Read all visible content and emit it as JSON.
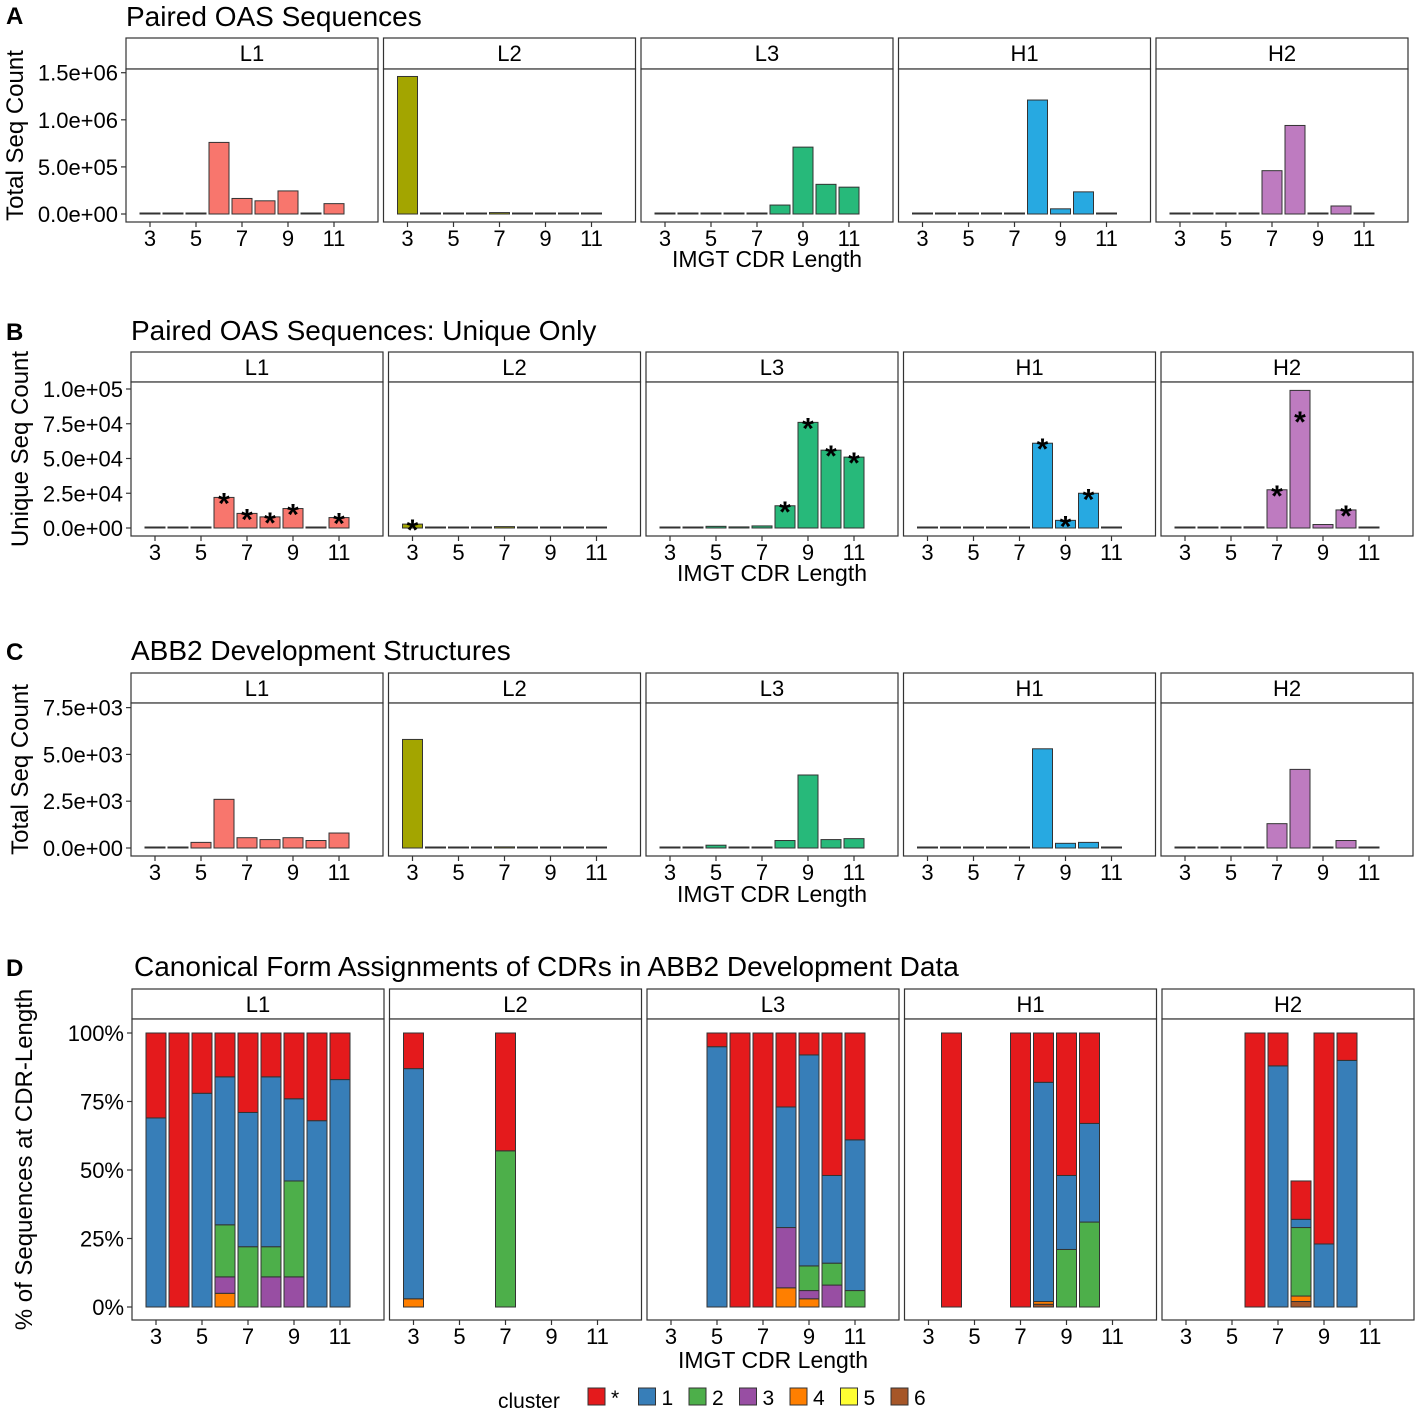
{
  "legend": {
    "title": "cluster",
    "items": [
      {
        "label": "*",
        "color": "#E41A1C"
      },
      {
        "label": "1",
        "color": "#377EB8"
      },
      {
        "label": "2",
        "color": "#4DAF4A"
      },
      {
        "label": "3",
        "color": "#984EA3"
      },
      {
        "label": "4",
        "color": "#FF7F00"
      },
      {
        "label": "5",
        "color": "#FFFF33"
      },
      {
        "label": "6",
        "color": "#A65628"
      }
    ]
  },
  "cdr_colors": {
    "L1": "#F8766D",
    "L2": "#A3A500",
    "L3": "#27B97A",
    "H1": "#27A9E1",
    "H2": "#BE7BC0"
  },
  "chart_data": [
    {
      "letter": "A",
      "type": "bar",
      "title": "Paired OAS Sequences",
      "xlabel": "IMGT CDR Length",
      "ylabel": "Total Seq Count",
      "x": [
        3,
        4,
        5,
        6,
        7,
        8,
        9,
        10,
        11
      ],
      "x_tick_labels": [
        "3",
        "5",
        "7",
        "9",
        "11"
      ],
      "ylim": [
        0,
        1550000
      ],
      "y_ticks": [
        {
          "value": 0,
          "label": "0.0e+00"
        },
        {
          "value": 500000,
          "label": "5.0e+05"
        },
        {
          "value": 1000000,
          "label": "1.0e+06"
        },
        {
          "value": 1500000,
          "label": "1.5e+06"
        }
      ],
      "facets": [
        {
          "label": "L1",
          "values": [
            500,
            500,
            1000,
            760000,
            165000,
            140000,
            245000,
            1000,
            110000
          ]
        },
        {
          "label": "L2",
          "values": [
            1460000,
            1000,
            1000,
            1000,
            15000,
            1000,
            1000,
            1000,
            1000
          ]
        },
        {
          "label": "L3",
          "values": [
            500,
            500,
            1000,
            2000,
            6000,
            95000,
            710000,
            315000,
            285000
          ]
        },
        {
          "label": "H1",
          "values": [
            500,
            500,
            500,
            1000,
            1000,
            1210000,
            55000,
            235000,
            1000
          ]
        },
        {
          "label": "H2",
          "values": [
            500,
            500,
            500,
            1000,
            460000,
            940000,
            5000,
            85000,
            1000
          ]
        }
      ]
    },
    {
      "letter": "B",
      "type": "bar",
      "title": "Paired OAS Sequences: Unique Only",
      "xlabel": "IMGT CDR Length",
      "ylabel": "Unique Seq Count",
      "x": [
        3,
        4,
        5,
        6,
        7,
        8,
        9,
        10,
        11
      ],
      "x_tick_labels": [
        "3",
        "5",
        "7",
        "9",
        "11"
      ],
      "ylim": [
        0,
        100000
      ],
      "y_ticks": [
        {
          "value": 0,
          "label": "0.0e+00"
        },
        {
          "value": 25000,
          "label": "2.5e+04"
        },
        {
          "value": 50000,
          "label": "5.0e+04"
        },
        {
          "value": 75000,
          "label": "7.5e+04"
        },
        {
          "value": 100000,
          "label": "1.0e+05"
        }
      ],
      "annotation_symbol": "*",
      "facets": [
        {
          "label": "L1",
          "values": [
            100,
            100,
            200,
            22000,
            10500,
            8000,
            14000,
            300,
            7500
          ],
          "starred": [
            6,
            7,
            8,
            9,
            11
          ]
        },
        {
          "label": "L2",
          "values": [
            2800,
            100,
            100,
            100,
            1000,
            100,
            100,
            100,
            100
          ],
          "starred": [
            3
          ]
        },
        {
          "label": "L3",
          "values": [
            100,
            200,
            1200,
            800,
            1500,
            16000,
            76000,
            56000,
            51000
          ],
          "starred": [
            8,
            9,
            10,
            11
          ]
        },
        {
          "label": "H1",
          "values": [
            100,
            100,
            100,
            300,
            300,
            61000,
            5500,
            25000,
            300
          ],
          "starred": [
            8,
            9,
            10
          ]
        },
        {
          "label": "H2",
          "values": [
            100,
            100,
            100,
            800,
            27500,
            99000,
            2500,
            13000,
            400
          ],
          "starred": [
            7,
            8,
            10
          ]
        }
      ]
    },
    {
      "letter": "C",
      "type": "bar",
      "title": "ABB2 Development Structures",
      "xlabel": "IMGT CDR Length",
      "ylabel": "Total Seq Count",
      "x": [
        3,
        4,
        5,
        6,
        7,
        8,
        9,
        10,
        11
      ],
      "x_tick_labels": [
        "3",
        "5",
        "7",
        "9",
        "11"
      ],
      "ylim": [
        0,
        7800
      ],
      "y_ticks": [
        {
          "value": 0,
          "label": "0.0e+00"
        },
        {
          "value": 2500,
          "label": "2.5e+03"
        },
        {
          "value": 5000,
          "label": "5.0e+03"
        },
        {
          "value": 7500,
          "label": "7.5e+03"
        }
      ],
      "facets": [
        {
          "label": "L1",
          "values": [
            20,
            40,
            300,
            2600,
            550,
            450,
            550,
            400,
            800
          ]
        },
        {
          "label": "L2",
          "values": [
            5800,
            0,
            0,
            0,
            60,
            0,
            0,
            0,
            0
          ]
        },
        {
          "label": "L3",
          "values": [
            0,
            0,
            150,
            40,
            40,
            400,
            3900,
            450,
            500
          ]
        },
        {
          "label": "H1",
          "values": [
            0,
            0,
            20,
            0,
            20,
            5300,
            250,
            300,
            0
          ]
        },
        {
          "label": "H2",
          "values": [
            0,
            0,
            0,
            30,
            1300,
            4200,
            50,
            400,
            0
          ]
        }
      ]
    },
    {
      "letter": "D",
      "type": "stacked_bar",
      "title": "Canonical Form Assignments of CDRs in ABB2 Development Data",
      "xlabel": "IMGT CDR Length",
      "ylabel": "% of Sequences at CDR-Length",
      "x": [
        3,
        4,
        5,
        6,
        7,
        8,
        9,
        10,
        11
      ],
      "x_tick_labels": [
        "3",
        "5",
        "7",
        "9",
        "11"
      ],
      "ylim": [
        0,
        100
      ],
      "y_ticks": [
        {
          "value": 0,
          "label": "0%"
        },
        {
          "value": 25,
          "label": "25%"
        },
        {
          "value": 50,
          "label": "50%"
        },
        {
          "value": 75,
          "label": "75%"
        },
        {
          "value": 100,
          "label": "100%"
        }
      ],
      "series_order": [
        "6",
        "5",
        "4",
        "3",
        "2",
        "1",
        "*"
      ],
      "facets": [
        {
          "label": "L1",
          "bars": [
            {
              "x": 3,
              "segments": {
                "1": 69,
                "*": 31
              }
            },
            {
              "x": 4,
              "segments": {
                "*": 100
              }
            },
            {
              "x": 5,
              "segments": {
                "1": 78,
                "*": 22
              }
            },
            {
              "x": 6,
              "segments": {
                "4": 5,
                "3": 6,
                "2": 19,
                "1": 54,
                "*": 16
              }
            },
            {
              "x": 7,
              "segments": {
                "2": 22,
                "1": 49,
                "*": 29
              }
            },
            {
              "x": 8,
              "segments": {
                "3": 11,
                "2": 11,
                "1": 62,
                "*": 16
              }
            },
            {
              "x": 9,
              "segments": {
                "3": 11,
                "2": 35,
                "1": 30,
                "*": 24
              }
            },
            {
              "x": 10,
              "segments": {
                "1": 68,
                "*": 32
              }
            },
            {
              "x": 11,
              "segments": {
                "1": 83,
                "*": 17
              }
            }
          ]
        },
        {
          "label": "L2",
          "bars": [
            {
              "x": 3,
              "segments": {
                "4": 3,
                "1": 84,
                "*": 13
              }
            },
            {
              "x": 7,
              "segments": {
                "2": 57,
                "*": 43
              }
            }
          ]
        },
        {
          "label": "L3",
          "bars": [
            {
              "x": 5,
              "segments": {
                "1": 95,
                "*": 5
              }
            },
            {
              "x": 6,
              "segments": {
                "*": 100
              }
            },
            {
              "x": 7,
              "segments": {
                "*": 100
              }
            },
            {
              "x": 8,
              "segments": {
                "4": 7,
                "3": 22,
                "1": 44,
                "*": 27
              }
            },
            {
              "x": 9,
              "segments": {
                "4": 3,
                "3": 3,
                "2": 9,
                "1": 77,
                "*": 8
              }
            },
            {
              "x": 10,
              "segments": {
                "3": 8,
                "2": 8,
                "1": 32,
                "*": 52
              }
            },
            {
              "x": 11,
              "segments": {
                "2": 6,
                "1": 55,
                "*": 39
              }
            }
          ]
        },
        {
          "label": "H1",
          "bars": [
            {
              "x": 4,
              "segments": {
                "*": 100
              }
            },
            {
              "x": 7,
              "segments": {
                "*": 100
              }
            },
            {
              "x": 8,
              "segments": {
                "6": 1,
                "4": 1,
                "1": 80,
                "*": 18
              }
            },
            {
              "x": 9,
              "segments": {
                "2": 21,
                "1": 27,
                "*": 52
              }
            },
            {
              "x": 10,
              "segments": {
                "2": 31,
                "1": 36,
                "*": 33
              }
            }
          ]
        },
        {
          "label": "H2",
          "bars": [
            {
              "x": 6,
              "segments": {
                "*": 100
              }
            },
            {
              "x": 7,
              "segments": {
                "1": 88,
                "*": 12
              }
            },
            {
              "x": 8,
              "segments": {
                "6": 2,
                "4": 2,
                "1": 3,
                "2": 25,
                "*": 14,
                "x1": 0
              }
            },
            {
              "x": 9,
              "segments": {
                "1": 23,
                "*": 77
              }
            },
            {
              "x": 10,
              "segments": {
                "1": 90,
                "*": 10
              }
            }
          ]
        }
      ]
    }
  ]
}
